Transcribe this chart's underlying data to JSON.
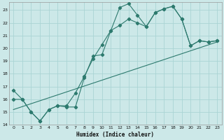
{
  "xlabel": "Humidex (Indice chaleur)",
  "bg_color": "#cce8e8",
  "grid_color": "#aad4d4",
  "line_color": "#2d7a6e",
  "xlim": [
    -0.5,
    23.5
  ],
  "ylim": [
    14,
    23.6
  ],
  "yticks": [
    14,
    15,
    16,
    17,
    18,
    19,
    20,
    21,
    22,
    23
  ],
  "xticks": [
    0,
    1,
    2,
    3,
    4,
    5,
    6,
    7,
    8,
    9,
    10,
    11,
    12,
    13,
    14,
    15,
    16,
    17,
    18,
    19,
    20,
    21,
    22,
    23
  ],
  "line1_x": [
    0,
    1,
    2,
    3,
    4,
    5,
    6,
    7,
    8,
    9,
    10,
    11,
    12,
    13,
    14,
    15,
    16,
    17,
    18,
    19,
    20,
    21,
    22,
    23
  ],
  "line1_y": [
    16.7,
    16.0,
    15.0,
    14.3,
    15.2,
    15.5,
    15.4,
    15.4,
    17.7,
    19.4,
    19.5,
    21.4,
    23.2,
    23.5,
    22.6,
    21.7,
    22.8,
    23.1,
    23.3,
    22.3,
    20.2,
    20.6,
    20.5,
    20.6
  ],
  "line2_x": [
    0,
    1,
    2,
    3,
    4,
    5,
    6,
    7,
    8,
    9,
    10,
    11,
    12,
    13,
    14,
    15,
    16,
    17,
    18,
    19,
    20,
    21,
    22,
    23
  ],
  "line2_y": [
    16.0,
    16.0,
    15.0,
    14.3,
    15.2,
    15.5,
    15.5,
    16.5,
    17.8,
    19.2,
    20.3,
    21.4,
    21.8,
    22.3,
    22.0,
    21.7,
    22.8,
    23.1,
    23.3,
    22.3,
    20.2,
    20.6,
    20.5,
    20.6
  ],
  "line3_x": [
    0,
    23
  ],
  "line3_y": [
    15.2,
    20.5
  ]
}
